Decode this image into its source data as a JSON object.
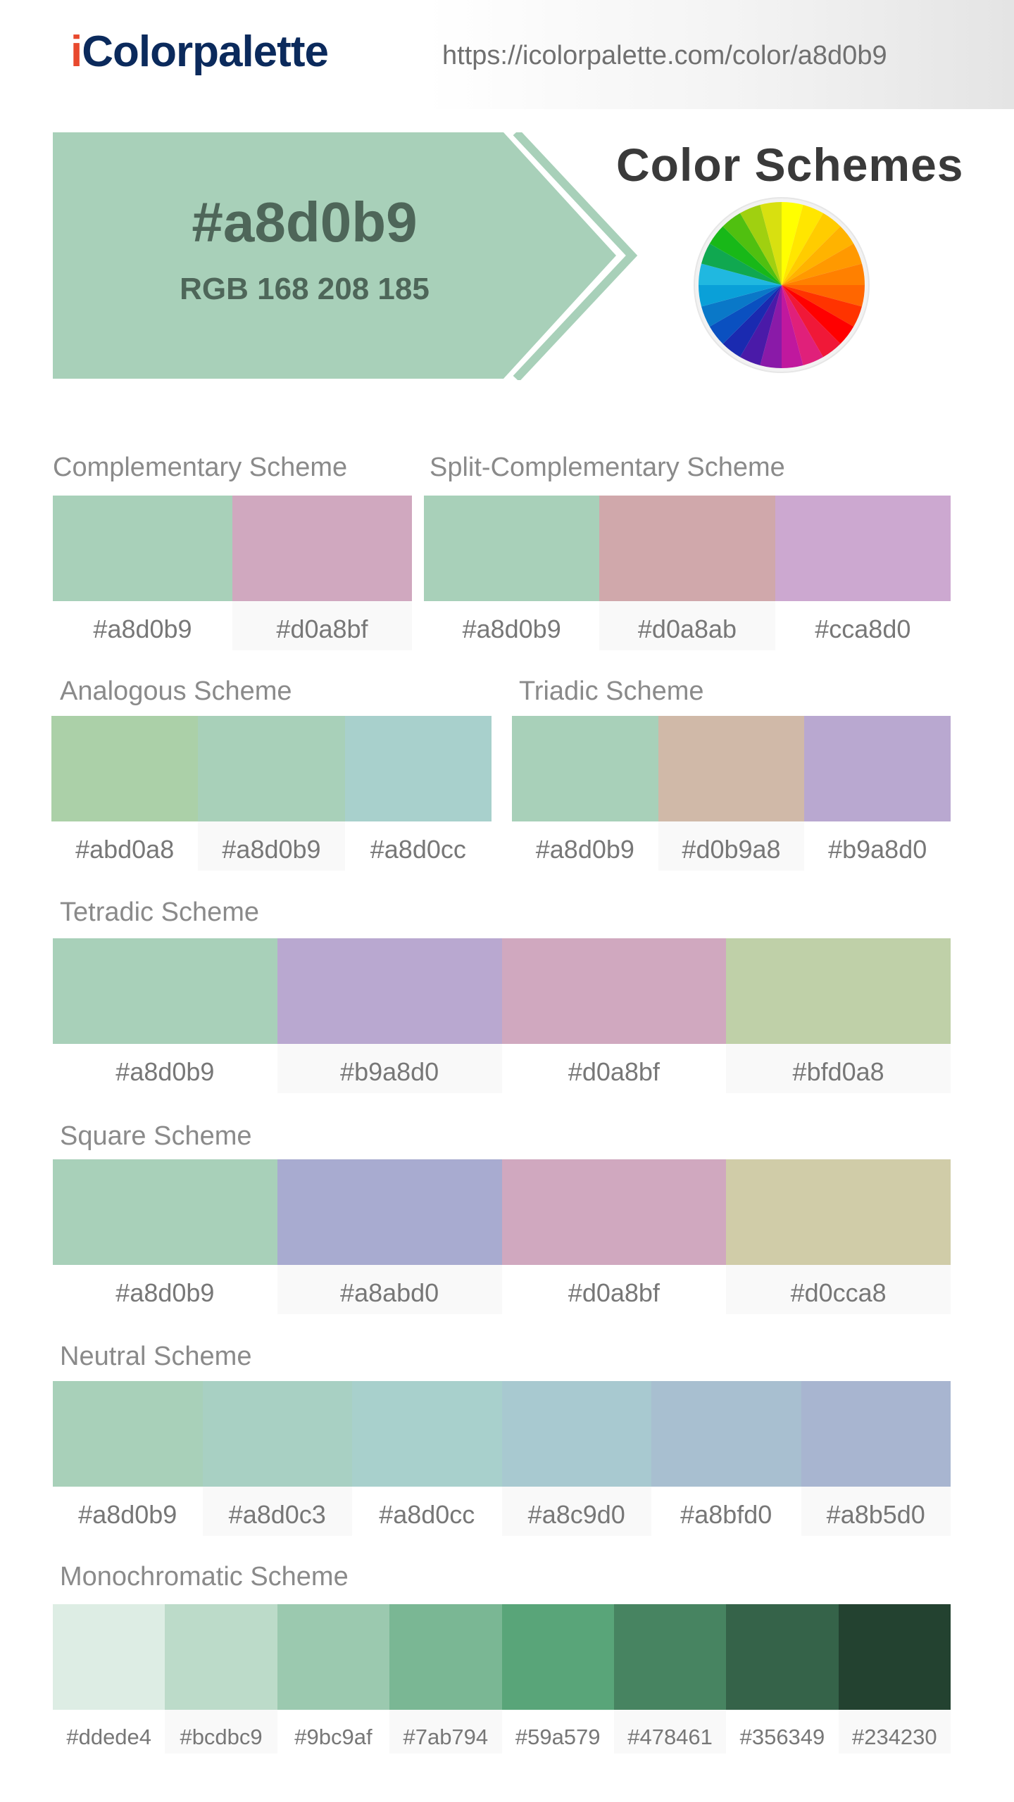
{
  "header": {
    "logo_text": "Colorpalette",
    "logo_prefix": "i",
    "url": "https://icolorpalette.com/color/a8d0b9"
  },
  "hero": {
    "hex": "#a8d0b9",
    "rgb": "RGB 168 208 185",
    "color": "#a8d0b9",
    "title": "Color Schemes"
  },
  "schemes": {
    "complementary": {
      "title": "Complementary Scheme",
      "colors": [
        "#a8d0b9",
        "#d0a8bf"
      ]
    },
    "split": {
      "title": "Split-Complementary Scheme",
      "colors": [
        "#a8d0b9",
        "#d0a8ab",
        "#cca8d0"
      ]
    },
    "analogous": {
      "title": "Analogous Scheme",
      "colors": [
        "#abd0a8",
        "#a8d0b9",
        "#a8d0cc"
      ]
    },
    "triadic": {
      "title": "Triadic Scheme",
      "colors": [
        "#a8d0b9",
        "#d0b9a8",
        "#b9a8d0"
      ]
    },
    "tetradic": {
      "title": "Tetradic Scheme",
      "colors": [
        "#a8d0b9",
        "#b9a8d0",
        "#d0a8bf",
        "#bfd0a8"
      ]
    },
    "square": {
      "title": "Square Scheme",
      "colors": [
        "#a8d0b9",
        "#a8abd0",
        "#d0a8bf",
        "#d0cca8"
      ]
    },
    "neutral": {
      "title": "Neutral Scheme",
      "colors": [
        "#a8d0b9",
        "#a8d0c3",
        "#a8d0cc",
        "#a8c9d0",
        "#a8bfd0",
        "#a8b5d0"
      ]
    },
    "monochromatic": {
      "title": "Monochromatic Scheme",
      "colors": [
        "#ddede4",
        "#bcdbc9",
        "#9bc9af",
        "#7ab794",
        "#59a579",
        "#478461",
        "#356349",
        "#234230"
      ]
    }
  },
  "wheel_colors": [
    "#ffff00",
    "#ffe600",
    "#ffcc00",
    "#ffb300",
    "#ff9900",
    "#ff8000",
    "#ff6600",
    "#ff3300",
    "#ff0000",
    "#f01838",
    "#e0207a",
    "#c0189e",
    "#8a1aa8",
    "#4a1aa8",
    "#1a2ab0",
    "#0a50c0",
    "#0a78c8",
    "#0aa0d8",
    "#20b8e0",
    "#10a850",
    "#18b818",
    "#50c010",
    "#a0d010",
    "#d8e010"
  ]
}
